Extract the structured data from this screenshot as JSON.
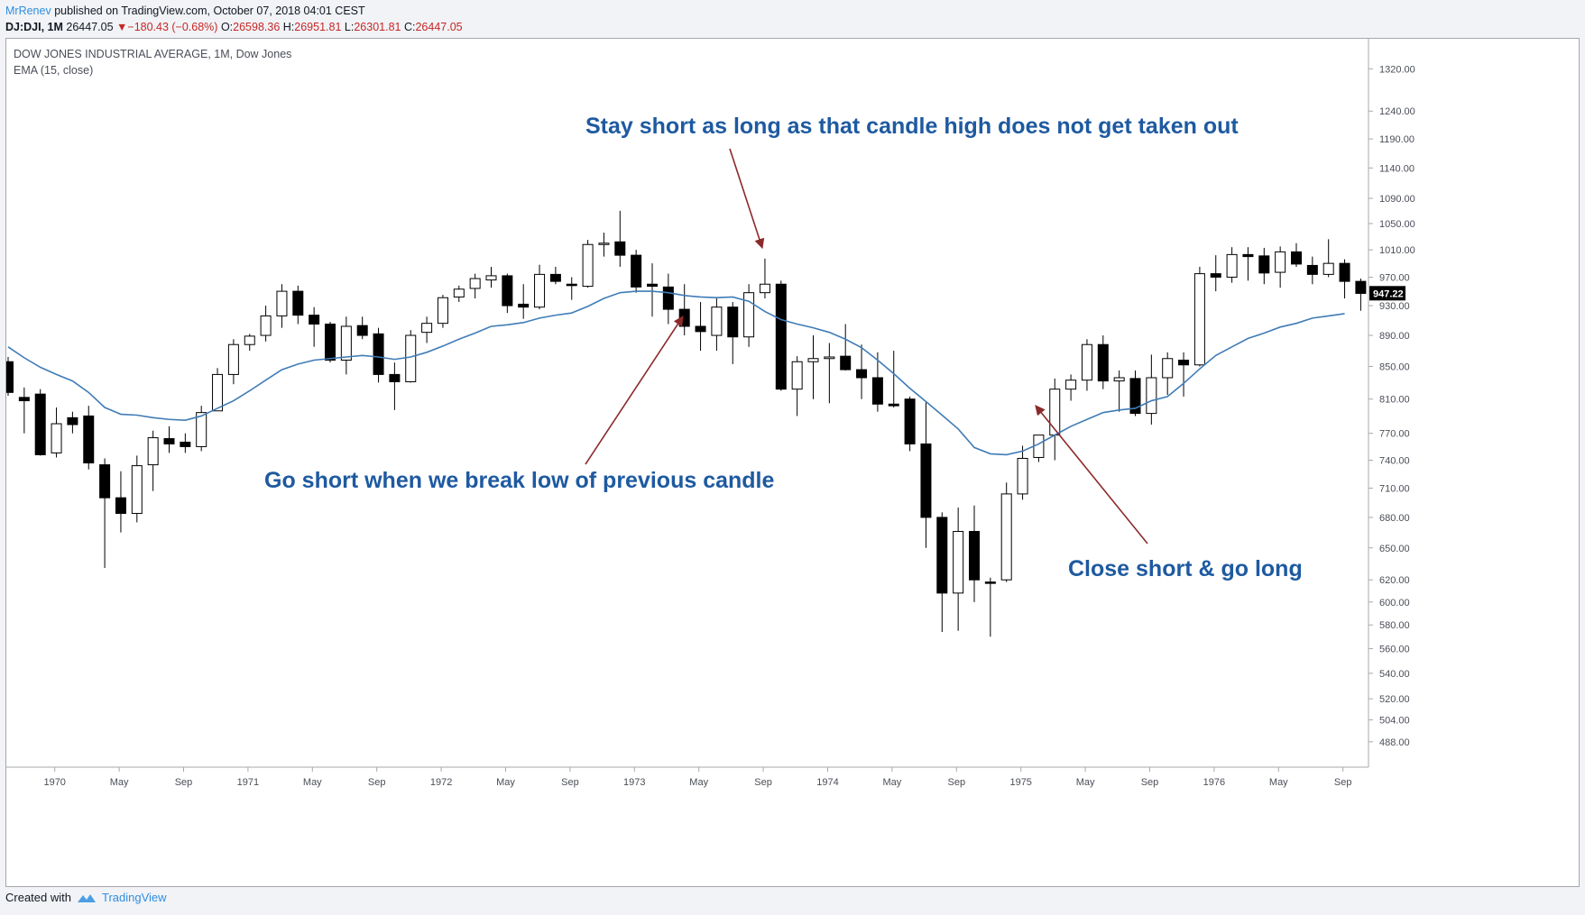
{
  "header": {
    "author": "MrRenev",
    "published_text": "published on TradingView.com, October 07, 2018 04:01 CEST"
  },
  "ohlc_bar": {
    "symbol": "DJ:DJI, 1M",
    "last": "26447.05",
    "change": "−180.43 (−0.68%)",
    "o_label": "O:",
    "o_value": "26598.36",
    "h_label": "H:",
    "h_value": "26951.81",
    "l_label": "L:",
    "l_value": "26301.81",
    "c_label": "C:",
    "c_value": "26447.05"
  },
  "chart_title": "DOW JONES INDUSTRIAL AVERAGE, 1M, Dow Jones",
  "indicator_label": "EMA (15, close)",
  "footer": {
    "created_with": "Created with",
    "brand": "TradingView"
  },
  "colors": {
    "up_fill": "#ffffff",
    "down_fill": "#000000",
    "wick": "#000000",
    "ema": "#3f7cb6",
    "annotation_text": "#1e5aa0",
    "arrow": "#8b2a2a",
    "axis_text": "#4a4e57",
    "price_label_bg": "#000000"
  },
  "chart_data": {
    "type": "candlestick",
    "price_scale": "log",
    "ylim": [
      470,
      1380
    ],
    "y_ticks": [
      488,
      504,
      520,
      540,
      560,
      580,
      600,
      620,
      650,
      680,
      710,
      740,
      770,
      810,
      850,
      890,
      930,
      970,
      1010,
      1050,
      1090,
      1140,
      1190,
      1240,
      1320
    ],
    "y_tick_labels": [
      "488.00",
      "504.00",
      "520.00",
      "540.00",
      "560.00",
      "580.00",
      "600.00",
      "620.00",
      "650.00",
      "680.00",
      "710.00",
      "740.00",
      "770.00",
      "810.00",
      "850.00",
      "890.00",
      "930.00",
      "970.00",
      "1010.00",
      "1050.00",
      "1090.00",
      "1140.00",
      "1190.00",
      "1240.00",
      "1320.00"
    ],
    "x_ticks": [
      {
        "index": 2,
        "label": "1970"
      },
      {
        "index": 6,
        "label": "May"
      },
      {
        "index": 10,
        "label": "Sep"
      },
      {
        "index": 14,
        "label": "1971"
      },
      {
        "index": 18,
        "label": "May"
      },
      {
        "index": 22,
        "label": "Sep"
      },
      {
        "index": 26,
        "label": "1972"
      },
      {
        "index": 30,
        "label": "May"
      },
      {
        "index": 34,
        "label": "Sep"
      },
      {
        "index": 38,
        "label": "1973"
      },
      {
        "index": 42,
        "label": "May"
      },
      {
        "index": 46,
        "label": "Sep"
      },
      {
        "index": 50,
        "label": "1974"
      },
      {
        "index": 54,
        "label": "May"
      },
      {
        "index": 58,
        "label": "Sep"
      },
      {
        "index": 62,
        "label": "1975"
      },
      {
        "index": 66,
        "label": "May"
      },
      {
        "index": 70,
        "label": "Sep"
      },
      {
        "index": 74,
        "label": "1976"
      },
      {
        "index": 78,
        "label": "May"
      },
      {
        "index": 82,
        "label": "Sep"
      }
    ],
    "last_price_label": "947.22",
    "last_price": 947.22,
    "candles": [
      {
        "o": 856,
        "h": 862,
        "l": 814,
        "c": 818
      },
      {
        "o": 812,
        "h": 824,
        "l": 770,
        "c": 808
      },
      {
        "o": 816,
        "h": 822,
        "l": 745,
        "c": 746
      },
      {
        "o": 748,
        "h": 800,
        "l": 743,
        "c": 781
      },
      {
        "o": 788,
        "h": 795,
        "l": 770,
        "c": 780
      },
      {
        "o": 790,
        "h": 802,
        "l": 730,
        "c": 737
      },
      {
        "o": 735,
        "h": 742,
        "l": 631,
        "c": 700
      },
      {
        "o": 700,
        "h": 728,
        "l": 665,
        "c": 684
      },
      {
        "o": 684,
        "h": 745,
        "l": 675,
        "c": 734
      },
      {
        "o": 735,
        "h": 773,
        "l": 707,
        "c": 765
      },
      {
        "o": 764,
        "h": 778,
        "l": 748,
        "c": 758
      },
      {
        "o": 760,
        "h": 770,
        "l": 748,
        "c": 755
      },
      {
        "o": 755,
        "h": 802,
        "l": 750,
        "c": 794
      },
      {
        "o": 796,
        "h": 848,
        "l": 796,
        "c": 840
      },
      {
        "o": 840,
        "h": 885,
        "l": 828,
        "c": 878
      },
      {
        "o": 878,
        "h": 892,
        "l": 870,
        "c": 889
      },
      {
        "o": 890,
        "h": 930,
        "l": 882,
        "c": 916
      },
      {
        "o": 916,
        "h": 960,
        "l": 900,
        "c": 950
      },
      {
        "o": 950,
        "h": 958,
        "l": 905,
        "c": 917
      },
      {
        "o": 917,
        "h": 928,
        "l": 875,
        "c": 905
      },
      {
        "o": 905,
        "h": 908,
        "l": 855,
        "c": 858
      },
      {
        "o": 858,
        "h": 915,
        "l": 840,
        "c": 902
      },
      {
        "o": 903,
        "h": 915,
        "l": 885,
        "c": 890
      },
      {
        "o": 892,
        "h": 900,
        "l": 830,
        "c": 840
      },
      {
        "o": 840,
        "h": 855,
        "l": 797,
        "c": 831
      },
      {
        "o": 831,
        "h": 897,
        "l": 830,
        "c": 890
      },
      {
        "o": 894,
        "h": 915,
        "l": 880,
        "c": 906
      },
      {
        "o": 906,
        "h": 945,
        "l": 900,
        "c": 941
      },
      {
        "o": 942,
        "h": 958,
        "l": 935,
        "c": 953
      },
      {
        "o": 954,
        "h": 975,
        "l": 940,
        "c": 968
      },
      {
        "o": 966,
        "h": 985,
        "l": 955,
        "c": 972
      },
      {
        "o": 972,
        "h": 975,
        "l": 920,
        "c": 930
      },
      {
        "o": 932,
        "h": 960,
        "l": 912,
        "c": 928
      },
      {
        "o": 928,
        "h": 988,
        "l": 925,
        "c": 974
      },
      {
        "o": 974,
        "h": 985,
        "l": 960,
        "c": 964
      },
      {
        "o": 960,
        "h": 970,
        "l": 938,
        "c": 958
      },
      {
        "o": 957,
        "h": 1025,
        "l": 955,
        "c": 1018
      },
      {
        "o": 1018,
        "h": 1036,
        "l": 1000,
        "c": 1020
      },
      {
        "o": 1022,
        "h": 1070,
        "l": 985,
        "c": 1002
      },
      {
        "o": 1002,
        "h": 1010,
        "l": 948,
        "c": 956
      },
      {
        "o": 960,
        "h": 990,
        "l": 915,
        "c": 957
      },
      {
        "o": 956,
        "h": 975,
        "l": 905,
        "c": 925
      },
      {
        "o": 925,
        "h": 960,
        "l": 890,
        "c": 902
      },
      {
        "o": 902,
        "h": 935,
        "l": 870,
        "c": 895
      },
      {
        "o": 890,
        "h": 940,
        "l": 870,
        "c": 928
      },
      {
        "o": 928,
        "h": 935,
        "l": 853,
        "c": 888
      },
      {
        "o": 888,
        "h": 960,
        "l": 875,
        "c": 948
      },
      {
        "o": 948,
        "h": 997,
        "l": 940,
        "c": 960
      },
      {
        "o": 960,
        "h": 965,
        "l": 820,
        "c": 822
      },
      {
        "o": 822,
        "h": 863,
        "l": 790,
        "c": 856
      },
      {
        "o": 856,
        "h": 890,
        "l": 810,
        "c": 860
      },
      {
        "o": 860,
        "h": 880,
        "l": 805,
        "c": 862
      },
      {
        "o": 863,
        "h": 905,
        "l": 845,
        "c": 846
      },
      {
        "o": 846,
        "h": 878,
        "l": 810,
        "c": 836
      },
      {
        "o": 836,
        "h": 868,
        "l": 795,
        "c": 804
      },
      {
        "o": 804,
        "h": 870,
        "l": 800,
        "c": 802
      },
      {
        "o": 810,
        "h": 813,
        "l": 750,
        "c": 758
      },
      {
        "o": 758,
        "h": 806,
        "l": 650,
        "c": 680
      },
      {
        "o": 680,
        "h": 685,
        "l": 574,
        "c": 608
      },
      {
        "o": 608,
        "h": 690,
        "l": 575,
        "c": 666
      },
      {
        "o": 666,
        "h": 692,
        "l": 600,
        "c": 620
      },
      {
        "o": 618,
        "h": 622,
        "l": 570,
        "c": 617
      },
      {
        "o": 620,
        "h": 716,
        "l": 618,
        "c": 704
      },
      {
        "o": 704,
        "h": 756,
        "l": 698,
        "c": 742
      },
      {
        "o": 743,
        "h": 768,
        "l": 738,
        "c": 768
      },
      {
        "o": 768,
        "h": 835,
        "l": 740,
        "c": 822
      },
      {
        "o": 822,
        "h": 840,
        "l": 808,
        "c": 833
      },
      {
        "o": 833,
        "h": 885,
        "l": 820,
        "c": 878
      },
      {
        "o": 878,
        "h": 890,
        "l": 822,
        "c": 832
      },
      {
        "o": 832,
        "h": 845,
        "l": 795,
        "c": 836
      },
      {
        "o": 835,
        "h": 845,
        "l": 790,
        "c": 793
      },
      {
        "o": 793,
        "h": 865,
        "l": 780,
        "c": 836
      },
      {
        "o": 836,
        "h": 868,
        "l": 815,
        "c": 860
      },
      {
        "o": 858,
        "h": 868,
        "l": 813,
        "c": 852
      },
      {
        "o": 852,
        "h": 985,
        "l": 850,
        "c": 975
      },
      {
        "o": 975,
        "h": 1002,
        "l": 950,
        "c": 970
      },
      {
        "o": 970,
        "h": 1014,
        "l": 962,
        "c": 1003
      },
      {
        "o": 1003,
        "h": 1014,
        "l": 965,
        "c": 1000
      },
      {
        "o": 1001,
        "h": 1013,
        "l": 960,
        "c": 976
      },
      {
        "o": 977,
        "h": 1015,
        "l": 955,
        "c": 1007
      },
      {
        "o": 1007,
        "h": 1020,
        "l": 985,
        "c": 989
      },
      {
        "o": 987,
        "h": 1000,
        "l": 960,
        "c": 974
      },
      {
        "o": 974,
        "h": 1026,
        "l": 970,
        "c": 990
      },
      {
        "o": 990,
        "h": 996,
        "l": 940,
        "c": 964
      },
      {
        "o": 964,
        "h": 968,
        "l": 923,
        "c": 947
      }
    ],
    "ema_15": [
      875,
      861,
      849,
      840,
      832,
      818,
      800,
      792,
      791,
      788,
      786,
      785,
      790,
      799,
      808,
      820,
      833,
      846,
      853,
      858,
      860,
      862,
      864,
      862,
      859,
      862,
      868,
      876,
      885,
      893,
      902,
      904,
      907,
      913,
      917,
      920,
      929,
      940,
      948,
      950,
      950,
      948,
      944,
      942,
      941,
      942,
      936,
      922,
      911,
      905,
      900,
      894,
      885,
      874,
      858,
      841,
      823,
      807,
      791,
      775,
      754,
      747,
      746,
      750,
      758,
      768,
      778,
      786,
      794,
      797,
      799,
      808,
      813,
      829,
      847,
      864,
      875,
      886,
      893,
      901,
      906,
      913,
      916,
      919
    ]
  },
  "annotations": [
    {
      "id": "stay-short",
      "text": "Stay short as long as that candle high does not get taken out"
    },
    {
      "id": "go-short",
      "text": "Go short when we break low of previous candle"
    },
    {
      "id": "close-short",
      "text": "Close short & go long"
    }
  ]
}
